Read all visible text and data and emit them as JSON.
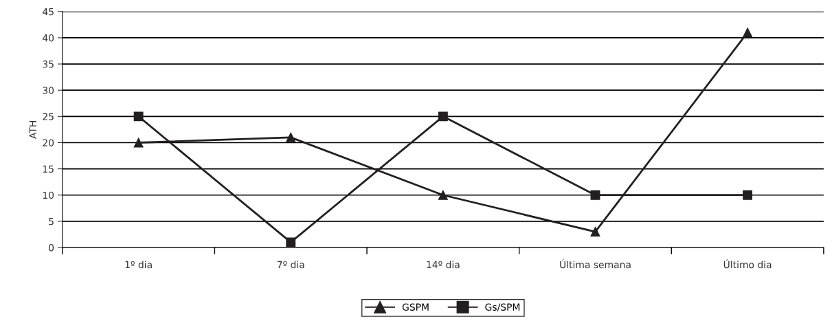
{
  "chart_data": {
    "type": "line",
    "ylabel": "ATH",
    "categories": [
      "1º dia",
      "7º dia",
      "14º dia",
      "Última semana",
      "Último dia"
    ],
    "series": [
      {
        "name": "GSPM",
        "color": "#231f20",
        "values": [
          20,
          21,
          10,
          3,
          41
        ],
        "marker": "triangle"
      },
      {
        "name": "Gs/SPM",
        "color": "#231f20",
        "values": [
          25,
          1,
          25,
          10,
          10
        ],
        "marker": "square"
      }
    ],
    "ylim": [
      0,
      45
    ],
    "yticks": [
      0,
      5,
      10,
      15,
      20,
      25,
      30,
      35,
      40,
      45
    ],
    "grid": "y",
    "legend": "bottom",
    "line_style": "solid"
  }
}
